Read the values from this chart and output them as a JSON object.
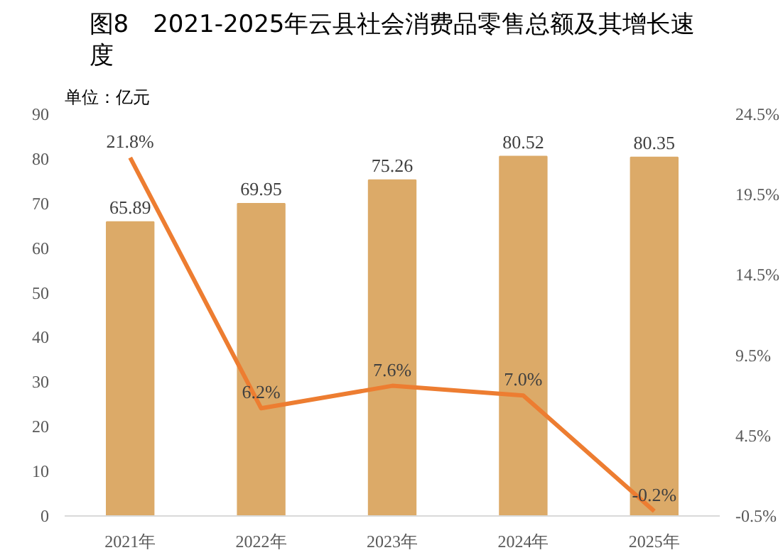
{
  "chart_data": {
    "type": "bar",
    "title": "图8　2021-2025年云县社会消费品零售总额及其增长速度",
    "ylabel": "单位：亿元",
    "categories": [
      "2021年",
      "2022年",
      "2023年",
      "2024年",
      "2025年"
    ],
    "series": [
      {
        "color": "#dcaa68",
        "values": [
          65.89,
          69.95,
          75.26,
          80.52,
          80.35
        ],
        "value_labels": [
          "65.89",
          "69.95",
          "75.26",
          "80.52",
          "80.35"
        ]
      },
      {
        "type": "line",
        "axis": "y2",
        "color": "#ed7d31",
        "values": [
          21.8,
          6.2,
          7.6,
          7.0,
          -0.2
        ],
        "value_labels": [
          "21.8%",
          "6.2%",
          "7.6%",
          "7.0%",
          "-0.2%"
        ]
      }
    ],
    "ylim": [
      0,
      90
    ],
    "yticks": [
      0,
      10,
      20,
      30,
      40,
      50,
      60,
      70,
      80,
      90
    ],
    "y2lim": [
      -0.5,
      24.5
    ],
    "y2ticks": [
      {
        "value": -0.5,
        "label": "-0.5%"
      },
      {
        "value": 4.5,
        "label": "4.5%"
      },
      {
        "value": 9.5,
        "label": "9.5%"
      },
      {
        "value": 14.5,
        "label": "14.5%"
      },
      {
        "value": 19.5,
        "label": "19.5%"
      },
      {
        "value": 24.5,
        "label": "24.5%"
      }
    ],
    "grid": false,
    "marker": "none",
    "line_style": "solid"
  }
}
